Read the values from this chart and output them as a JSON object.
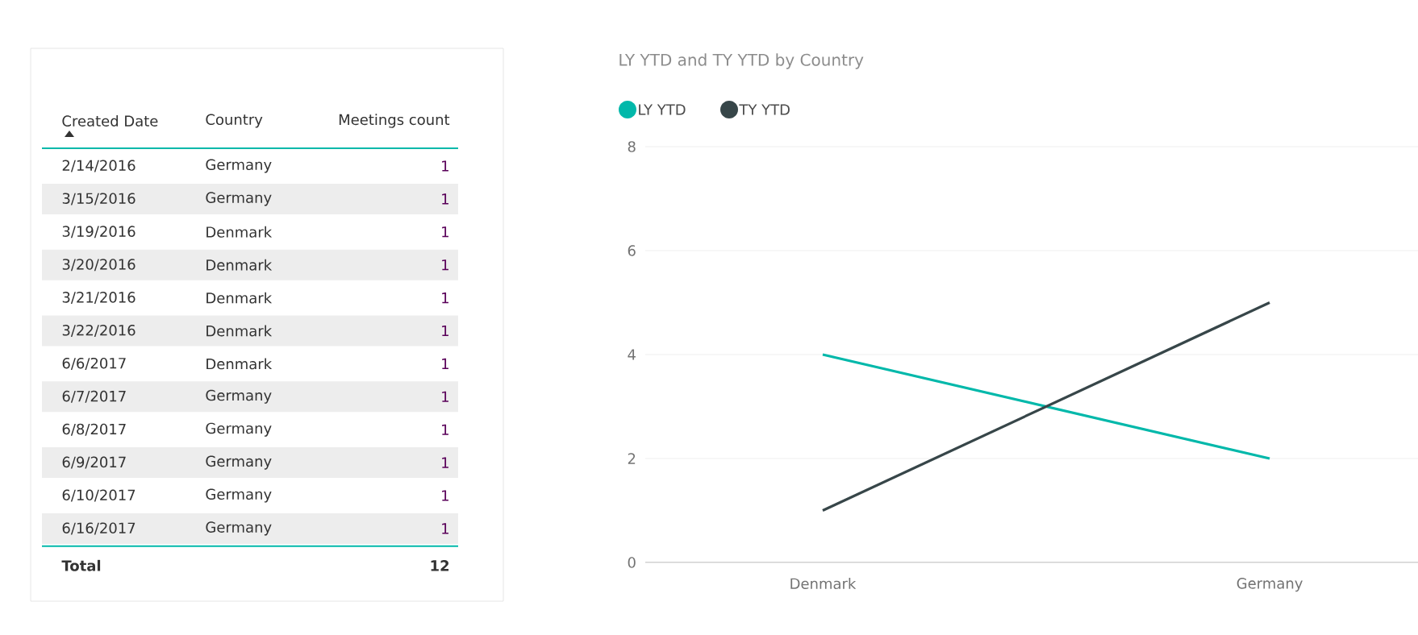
{
  "chart_data": [
    {
      "type": "other",
      "annotations": [
        "Created Date",
        "Country",
        "Meetings count",
        "2/14/2016",
        "Germany",
        "1",
        "3/15/2016",
        "Germany",
        "1",
        "3/19/2016",
        "Denmark",
        "1",
        "3/20/2016",
        "Denmark",
        "1",
        "3/21/2016",
        "Denmark",
        "1",
        "3/22/2016",
        "Denmark",
        "1",
        "6/6/2017",
        "Denmark",
        "1",
        "6/7/2017",
        "Germany",
        "1",
        "6/8/2017",
        "Germany",
        "1",
        "6/9/2017",
        "Germany",
        "1",
        "6/10/2017",
        "Germany",
        "1",
        "6/16/2017",
        "Germany",
        "1",
        "Total",
        "12"
      ]
    },
    {
      "type": "line",
      "title": "LY YTD and TY YTD by Country",
      "categories": [
        "Denmark",
        "Germany"
      ],
      "series": [
        {
          "name": "LY YTD",
          "color": "#01b8aa",
          "values": [
            4,
            2
          ]
        },
        {
          "name": "TY YTD",
          "color": "#374649",
          "values": [
            1,
            5
          ]
        }
      ],
      "ylim": [
        0,
        8
      ],
      "yticks": [
        0,
        2,
        4,
        6,
        8
      ],
      "grid": "y",
      "legend": "top left"
    }
  ]
}
